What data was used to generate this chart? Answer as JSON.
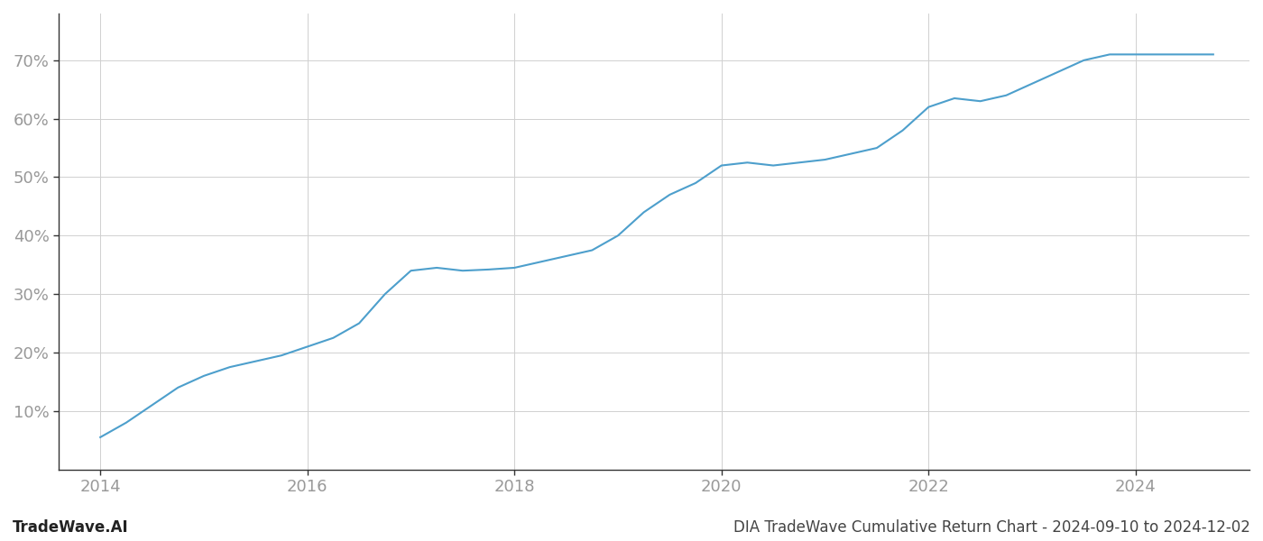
{
  "title": "DIA TradeWave Cumulative Return Chart - 2024-09-10 to 2024-12-02",
  "watermark": "TradeWave.AI",
  "line_color": "#4d9fcc",
  "background_color": "#ffffff",
  "grid_color": "#d0d0d0",
  "x_points": [
    2014.0,
    2014.25,
    2014.5,
    2014.75,
    2015.0,
    2015.25,
    2015.5,
    2015.75,
    2016.0,
    2016.25,
    2016.5,
    2016.75,
    2017.0,
    2017.25,
    2017.5,
    2017.75,
    2018.0,
    2018.25,
    2018.5,
    2018.75,
    2019.0,
    2019.25,
    2019.5,
    2019.75,
    2020.0,
    2020.25,
    2020.5,
    2020.75,
    2021.0,
    2021.25,
    2021.5,
    2021.75,
    2022.0,
    2022.25,
    2022.5,
    2022.75,
    2023.0,
    2023.25,
    2023.5,
    2023.75,
    2024.0,
    2024.25,
    2024.5,
    2024.75
  ],
  "y_points": [
    5.5,
    8.0,
    11.0,
    14.0,
    16.0,
    17.5,
    18.5,
    19.5,
    21.0,
    22.5,
    25.0,
    30.0,
    34.0,
    34.5,
    34.0,
    34.2,
    34.5,
    35.5,
    36.5,
    37.5,
    40.0,
    44.0,
    47.0,
    49.0,
    52.0,
    52.5,
    52.0,
    52.5,
    53.0,
    54.0,
    55.0,
    58.0,
    62.0,
    63.5,
    63.0,
    64.0,
    66.0,
    68.0,
    70.0,
    71.0,
    71.0,
    71.0,
    71.0,
    71.0
  ],
  "xlim": [
    2013.6,
    2025.1
  ],
  "ylim": [
    0,
    78
  ],
  "yticks": [
    10,
    20,
    30,
    40,
    50,
    60,
    70
  ],
  "xticks": [
    2014,
    2016,
    2018,
    2020,
    2022,
    2024
  ],
  "line_width": 1.5,
  "title_fontsize": 12,
  "watermark_fontsize": 12,
  "tick_fontsize": 13,
  "tick_color": "#999999",
  "spine_color": "#333333"
}
